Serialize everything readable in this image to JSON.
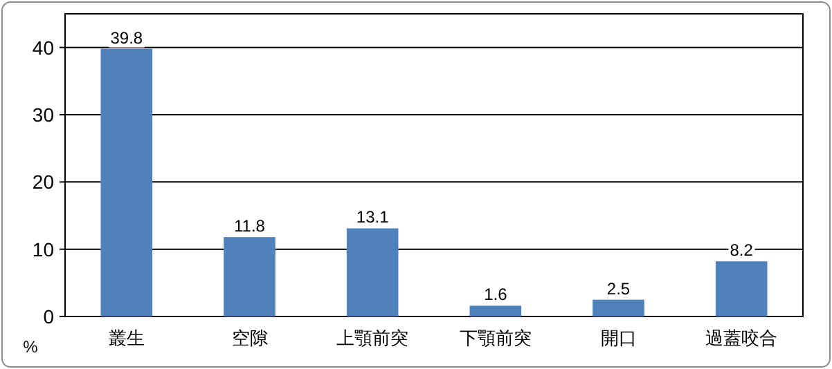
{
  "chart_data": {
    "type": "bar",
    "ylabel": "%",
    "categories": [
      "叢生",
      "空隙",
      "上顎前突",
      "下顎前突",
      "開口",
      "過蓋咬合"
    ],
    "values": [
      39.8,
      11.8,
      13.1,
      1.6,
      2.5,
      8.2
    ],
    "color": "#4f81bd",
    "ylim": [
      0,
      45
    ],
    "yticks": [
      0,
      10,
      20,
      30,
      40
    ],
    "grid": "y",
    "data_labels": true
  }
}
